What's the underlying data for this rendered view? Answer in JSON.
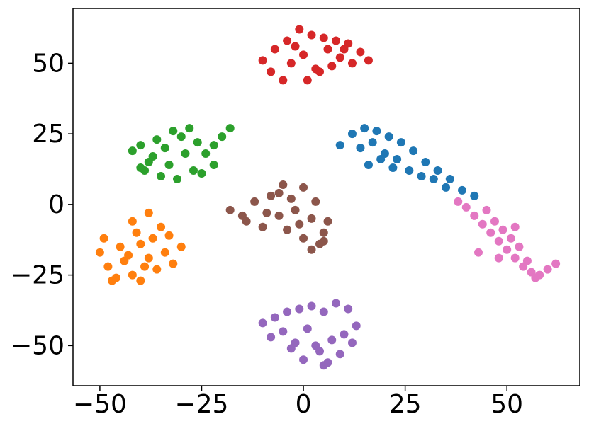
{
  "chart_data": {
    "type": "scatter",
    "xlim": [
      -56.6,
      67.9
    ],
    "ylim": [
      -64.2,
      69.4
    ],
    "xticks": [
      {
        "value": -50,
        "label": "−50"
      },
      {
        "value": -25,
        "label": "−25"
      },
      0,
      25,
      50
    ],
    "yticks": [
      {
        "value": -50,
        "label": "−50"
      },
      {
        "value": -25,
        "label": "−25"
      },
      0,
      25,
      50
    ],
    "series": [
      {
        "color": "#d62728",
        "x": [
          -10,
          -7,
          -4,
          -1,
          2,
          5,
          8,
          11,
          14,
          16,
          -8,
          -3,
          0,
          3,
          6,
          9,
          12,
          -5,
          1,
          4,
          -2,
          7,
          10
        ],
        "y": [
          51,
          55,
          58,
          62,
          60,
          59,
          58,
          57,
          54,
          51,
          47,
          50,
          53,
          48,
          55,
          52,
          50,
          44,
          44,
          47,
          56,
          49,
          55
        ]
      },
      {
        "color": "#2ca02c",
        "x": [
          -42,
          -40,
          -38,
          -36,
          -34,
          -32,
          -30,
          -28,
          -26,
          -24,
          -22,
          -20,
          -18,
          -39,
          -35,
          -31,
          -27,
          -37,
          -33,
          -29,
          -25,
          -22,
          -40
        ],
        "y": [
          19,
          21,
          15,
          23,
          20,
          26,
          24,
          27,
          22,
          18,
          21,
          24,
          27,
          12,
          10,
          9,
          12,
          17,
          14,
          18,
          11,
          14,
          13
        ]
      },
      {
        "color": "#ff7f0e",
        "x": [
          -50,
          -48,
          -46,
          -44,
          -42,
          -40,
          -38,
          -36,
          -34,
          -32,
          -30,
          -49,
          -45,
          -41,
          -37,
          -33,
          -47,
          -43,
          -39,
          -35,
          -40,
          -42,
          -38
        ],
        "y": [
          -17,
          -22,
          -26,
          -20,
          -25,
          -14,
          -19,
          -23,
          -17,
          -21,
          -15,
          -12,
          -15,
          -10,
          -12,
          -11,
          -27,
          -18,
          -22,
          -8,
          -27,
          -6,
          -3
        ]
      },
      {
        "color": "#8c564b",
        "x": [
          -18,
          -15,
          -12,
          -9,
          -6,
          -3,
          0,
          3,
          6,
          -14,
          -10,
          -6,
          -2,
          2,
          5,
          -8,
          -4,
          0,
          4,
          -1,
          2,
          5,
          -5
        ],
        "y": [
          -2,
          -4,
          1,
          -3,
          4,
          2,
          6,
          1,
          -6,
          -6,
          -8,
          -4,
          -2,
          -5,
          -10,
          3,
          -9,
          -12,
          -14,
          -7,
          -16,
          -13,
          7
        ]
      },
      {
        "color": "#1f77b4",
        "x": [
          9,
          12,
          15,
          18,
          21,
          24,
          27,
          30,
          33,
          36,
          39,
          42,
          14,
          17,
          20,
          23,
          26,
          29,
          32,
          35,
          16,
          19,
          22
        ],
        "y": [
          21,
          25,
          27,
          26,
          24,
          22,
          19,
          15,
          12,
          9,
          5,
          3,
          20,
          22,
          18,
          16,
          12,
          10,
          9,
          6,
          14,
          16,
          13
        ]
      },
      {
        "color": "#e377c2",
        "x": [
          38,
          40,
          42,
          44,
          46,
          48,
          50,
          52,
          54,
          56,
          58,
          60,
          62,
          45,
          47,
          49,
          51,
          53,
          55,
          57,
          43,
          48,
          52
        ],
        "y": [
          1,
          -1,
          -4,
          -7,
          -10,
          -13,
          -16,
          -19,
          -22,
          -24,
          -25,
          -23,
          -21,
          -2,
          -6,
          -9,
          -12,
          -15,
          -20,
          -26,
          -17,
          -19,
          -8
        ]
      },
      {
        "color": "#9467bd",
        "x": [
          -10,
          -7,
          -4,
          -1,
          2,
          5,
          8,
          11,
          13,
          -8,
          -5,
          -2,
          1,
          4,
          7,
          10,
          -3,
          0,
          3,
          6,
          9,
          12,
          5
        ],
        "y": [
          -42,
          -40,
          -38,
          -37,
          -36,
          -38,
          -35,
          -37,
          -43,
          -47,
          -45,
          -49,
          -44,
          -52,
          -48,
          -46,
          -51,
          -55,
          -50,
          -56,
          -53,
          -49,
          -57
        ]
      }
    ]
  }
}
